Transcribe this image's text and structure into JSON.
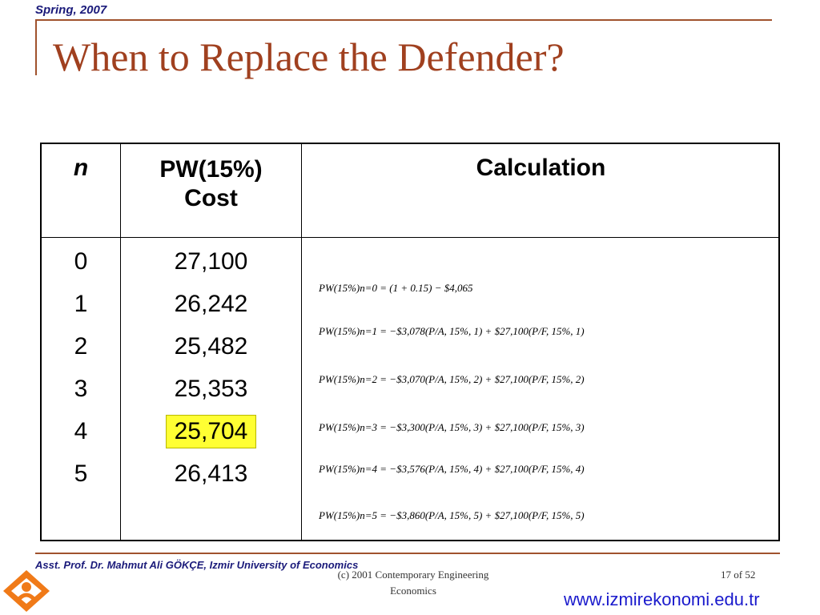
{
  "header": {
    "term": "Spring, 2007"
  },
  "slide": {
    "title": "When to Replace the Defender?"
  },
  "table": {
    "headers": {
      "n": "n",
      "pw_line1": "PW(15%)",
      "pw_line2": "Cost",
      "calc": "Calculation"
    },
    "rows": [
      {
        "n": "0",
        "pw": "27,100"
      },
      {
        "n": "1",
        "pw": "26,242"
      },
      {
        "n": "2",
        "pw": "25,482"
      },
      {
        "n": "3",
        "pw": "25,353"
      },
      {
        "n": "4",
        "pw": "25,704",
        "highlight": true
      },
      {
        "n": "5",
        "pw": "26,413"
      }
    ],
    "formulas": [
      "PW(15%)n=0 = (1 + 0.15) − $4,065",
      "PW(15%)n=1 = −$3,078(P/A, 15%, 1) + $27,100(P/F, 15%, 1)",
      "PW(15%)n=2 = −$3,070(P/A, 15%, 2) + $27,100(P/F, 15%, 2)",
      "PW(15%)n=3 = −$3,300(P/A, 15%, 3) + $27,100(P/F, 15%, 3)",
      "PW(15%)n=4 = −$3,576(P/A, 15%, 4) + $27,100(P/F, 15%, 4)",
      "PW(15%)n=5 = −$3,860(P/A, 15%, 5) + $27,100(P/F, 15%, 5)"
    ]
  },
  "footer": {
    "author": "Asst. Prof. Dr. Mahmut Ali GÖKÇE, Izmir University of Economics",
    "copyright_line1": "(c) 2001 Contemporary Engineering",
    "copyright_line2": "Economics",
    "page": "17 of 52",
    "website": "www.izmirekonomi.edu.tr"
  },
  "colors": {
    "accent": "#a0522d",
    "title": "#a0401f",
    "link": "#1a1acc",
    "highlight": "#ffff33"
  }
}
